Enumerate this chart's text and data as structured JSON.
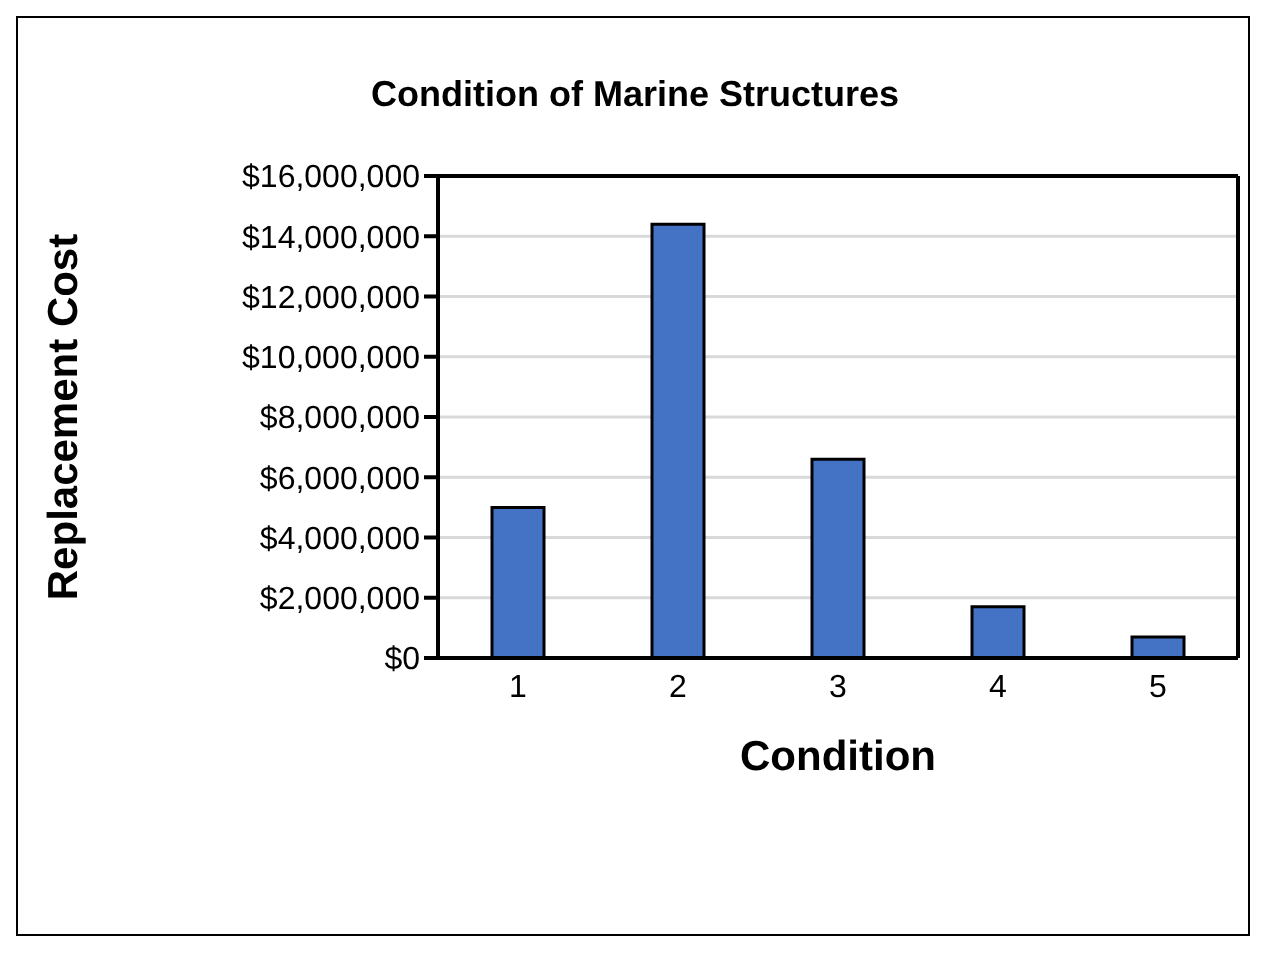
{
  "chart_data": {
    "type": "bar",
    "title": "Condition of Marine Structures",
    "xlabel": "Condition",
    "ylabel": "Replacement Cost",
    "categories": [
      "1",
      "2",
      "3",
      "4",
      "5"
    ],
    "values": [
      5000000,
      14400000,
      6600000,
      1700000,
      700000
    ],
    "color": "#4472c4",
    "ylim": [
      0,
      16000000
    ],
    "yticks": [
      {
        "value": 0,
        "label": "$0"
      },
      {
        "value": 2000000,
        "label": "$2,000,000"
      },
      {
        "value": 4000000,
        "label": "$4,000,000"
      },
      {
        "value": 6000000,
        "label": "$6,000,000"
      },
      {
        "value": 8000000,
        "label": "$8,000,000"
      },
      {
        "value": 10000000,
        "label": "$10,000,000"
      },
      {
        "value": 12000000,
        "label": "$12,000,000"
      },
      {
        "value": 14000000,
        "label": "$14,000,000"
      },
      {
        "value": 16000000,
        "label": "$16,000,000"
      }
    ],
    "grid": "y"
  }
}
